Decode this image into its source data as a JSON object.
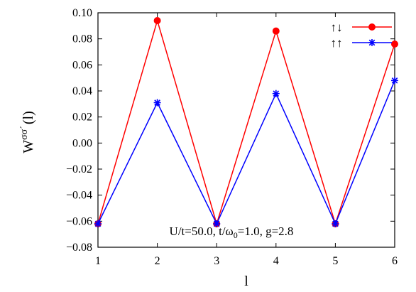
{
  "chart_data": {
    "type": "line",
    "x": [
      1,
      2,
      3,
      4,
      5,
      6
    ],
    "series": [
      {
        "name": "↑↓",
        "color": "#ff0000",
        "marker": "filled-circle",
        "values": [
          -0.062,
          0.094,
          -0.062,
          0.086,
          -0.062,
          0.076
        ]
      },
      {
        "name": "↑↑",
        "color": "#0000ff",
        "marker": "asterisk",
        "values": [
          -0.062,
          0.031,
          -0.062,
          0.038,
          -0.062,
          0.048
        ]
      }
    ],
    "xlim": [
      1,
      6
    ],
    "ylim": [
      -0.08,
      0.1
    ],
    "xticks": [
      "1",
      "2",
      "3",
      "4",
      "5",
      "6"
    ],
    "yticks": [
      "−0.08",
      "−0.06",
      "−0.04",
      "−0.02",
      "0.00",
      "0.02",
      "0.04",
      "0.06",
      "0.08",
      "0.10"
    ],
    "ytick_values": [
      -0.08,
      -0.06,
      -0.04,
      -0.02,
      0.0,
      0.02,
      0.04,
      0.06,
      0.08,
      0.1
    ],
    "xlabel": "l",
    "ylabel": "W",
    "ylabel_sup": "σσ´",
    "ylabel_suffix": "(l)",
    "annotation": "U/t=50.0, t/ω",
    "annotation_sub": "0",
    "annotation_suffix": "=1.0, g=2.8",
    "legend_position": "top-right",
    "grid": false
  }
}
